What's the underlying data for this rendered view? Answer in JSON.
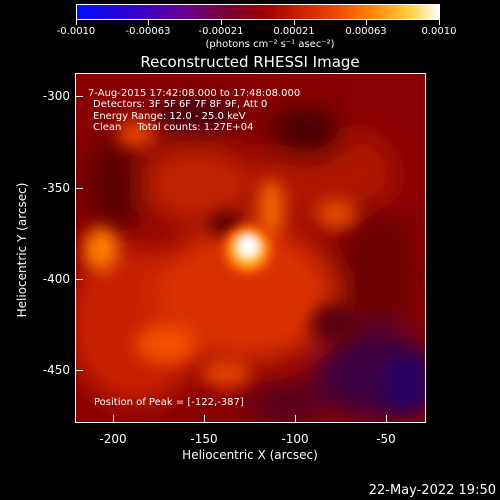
{
  "colorbar": {
    "labels": [
      "-0.0010",
      "-0.00063",
      "-0.00021",
      "0.00021",
      "0.00063",
      "0.0010"
    ],
    "unit": "(photons cm⁻² s⁻¹ asec⁻²)"
  },
  "title": "Reconstructed RHESSI Image",
  "info": {
    "time": "7-Aug-2015 17:42:08.000 to 17:48:08.000",
    "detectors": "Detectors: 3F 5F 6F 7F 8F 9F, Att 0",
    "energy": "Energy Range: 12.0 - 25.0 keV",
    "clean": "Clean     Total counts: 1.27E+04",
    "peak": "Position of Peak = [-122,-387]"
  },
  "axes": {
    "xlabel": "Heliocentric X (arcsec)",
    "ylabel": "Heliocentric Y (arcsec)",
    "xticks": [
      "-200",
      "-150",
      "-100",
      "-50"
    ],
    "yticks": [
      "-300",
      "-350",
      "-400",
      "-450"
    ]
  },
  "timestamp": "22-May-2022 19:50"
}
